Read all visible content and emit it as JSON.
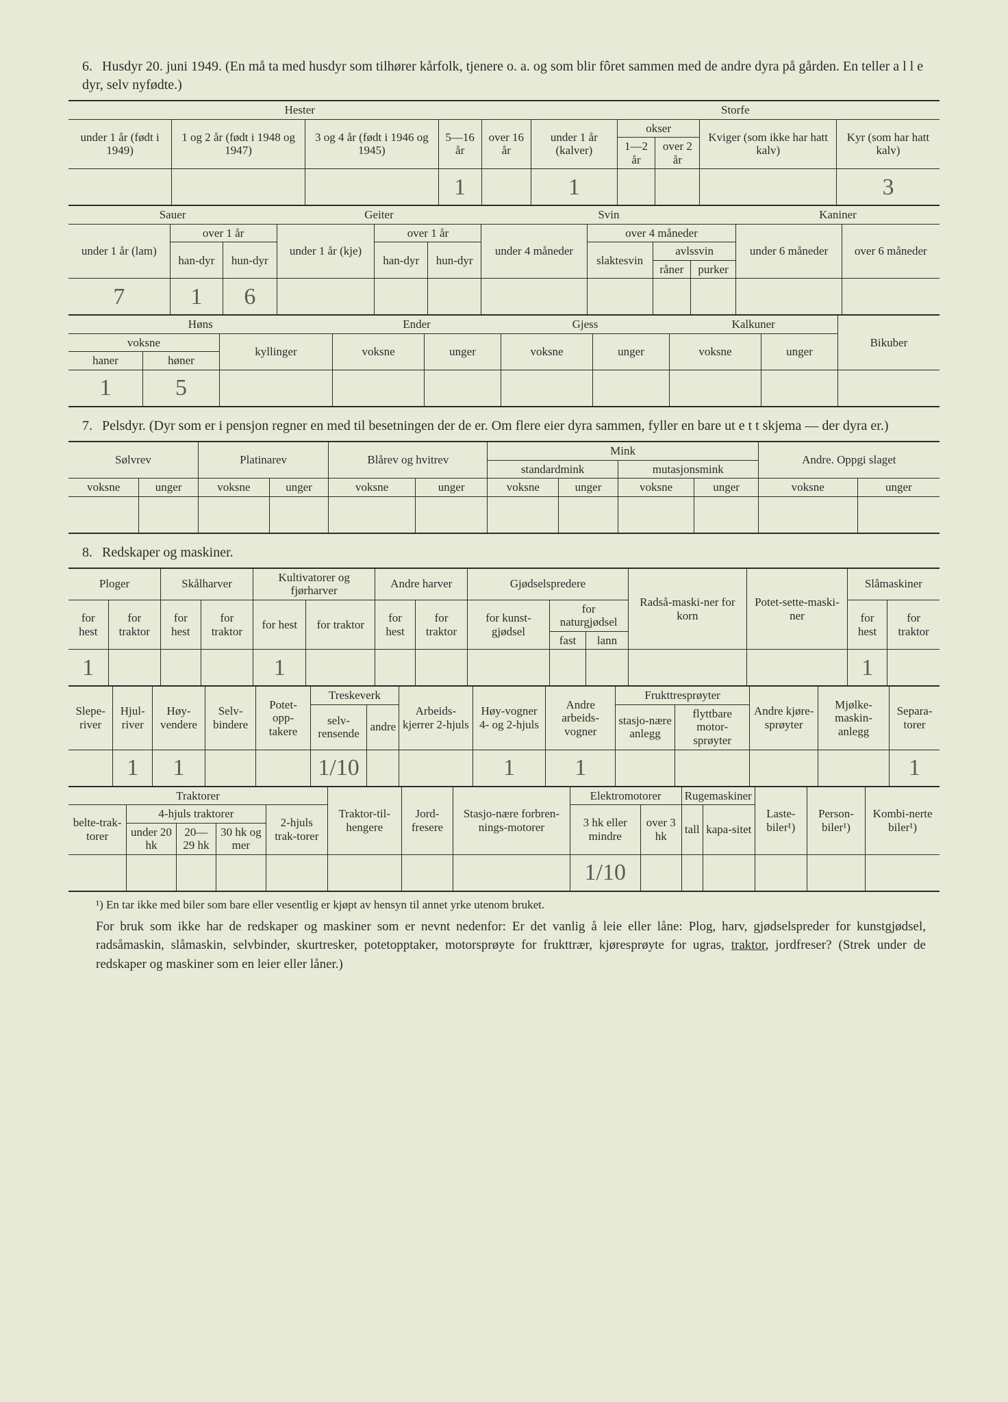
{
  "section6": {
    "title_num": "6.",
    "title": "Husdyr 20. juni 1949. (En må ta med husdyr som tilhører kårfolk, tjenere o. a. og som blir fôret sammen med de andre dyra på gården.  En teller a l l e dyr, selv nyfødte.)",
    "t1": {
      "hester": "Hester",
      "storfe": "Storfe",
      "h_u1": "under 1 år (født i 1949)",
      "h_1_2": "1 og 2 år (født i 1948 og 1947)",
      "h_3_4": "3 og 4 år (født i 1946 og 1945)",
      "h_5_16": "5—16 år",
      "h_o16": "over 16 år",
      "s_u1": "under 1 år (kalver)",
      "s_okser": "okser",
      "s_1_2": "1—2 år",
      "s_o2": "over 2 år",
      "s_kviger": "Kviger (som ikke har hatt kalv)",
      "s_kyr": "Kyr (som har hatt kalv)",
      "vals": {
        "h_5_16": "1",
        "s_u1": "1",
        "s_kyr": "3"
      }
    },
    "t2": {
      "sauer": "Sauer",
      "geiter": "Geiter",
      "svin": "Svin",
      "kaniner": "Kaniner",
      "u1_lam": "under 1 år (lam)",
      "o1": "over 1 år",
      "handyr": "han-dyr",
      "hundyr": "hun-dyr",
      "u1_kje": "under 1 år (kje)",
      "u4": "under 4 måneder",
      "o4": "over 4 måneder",
      "slaktesvin": "slaktesvin",
      "avlssvin": "avlssvin",
      "raner": "råner",
      "purker": "purker",
      "u6": "under 6 måneder",
      "o6": "over 6 måneder",
      "vals": {
        "lam": "7",
        "handyr": "1",
        "hundyr": "6"
      }
    },
    "t3": {
      "hons": "Høns",
      "ender": "Ender",
      "gjess": "Gjess",
      "kalkuner": "Kalkuner",
      "bikuber": "Bikuber",
      "voksne": "voksne",
      "haner": "haner",
      "honer": "høner",
      "kyllinger": "kyllinger",
      "unger": "unger",
      "vals": {
        "haner": "1",
        "honer": "5"
      }
    }
  },
  "section7": {
    "title_num": "7.",
    "title": "Pelsdyr.  (Dyr som er i pensjon regner en med til besetningen der de er.  Om flere eier dyra sammen, fyller en bare ut e t t skjema — der dyra er.)",
    "solvrev": "Sølvrev",
    "platinarev": "Platinarev",
    "blarev": "Blårev og hvitrev",
    "mink": "Mink",
    "standardmink": "standardmink",
    "mutasjonsmink": "mutasjonsmink",
    "andre": "Andre. Oppgi slaget",
    "voksne": "voksne",
    "unger": "unger"
  },
  "section8": {
    "title_num": "8.",
    "title": "Redskaper og maskiner.",
    "t1": {
      "ploger": "Ploger",
      "skalharver": "Skålharver",
      "kultivatorer": "Kultivatorer og fjørharver",
      "andreharver": "Andre harver",
      "gjodselspredere": "Gjødselspredere",
      "radsa": "Radså-maski-ner for korn",
      "potet": "Potet-sette-maski-ner",
      "slamaskiner": "Slåmaskiner",
      "forhest": "for hest",
      "fortraktor": "for traktor",
      "forkunst": "for kunst-gjødsel",
      "fornatur": "for naturgjødsel",
      "fast": "fast",
      "lann": "lann",
      "vals": {
        "plog_hest": "1",
        "kult_hest": "1",
        "sla_hest": "1"
      }
    },
    "t2": {
      "sleperiver": "Slepe-river",
      "hjulriver": "Hjul-river",
      "hoyvendere": "Høy-vendere",
      "selvbindere": "Selv-bindere",
      "potetopptakere": "Potet-opp-takere",
      "treskeverk": "Treskeverk",
      "selvrensende": "selv-rensende",
      "andre": "andre",
      "arbeidskjerrer": "Arbeids-kjerrer 2-hjuls",
      "hoyvogner": "Høy-vogner 4- og 2-hjuls",
      "andrearbeids": "Andre arbeids-vogner",
      "frukttresproyter": "Frukttresprøyter",
      "stasjonere": "stasjo-nære anlegg",
      "flyttbare": "flyttbare motor-sprøyter",
      "andrekjore": "Andre kjøre-sprøyter",
      "mjolke": "Mjølke-maskin-anlegg",
      "separatorer": "Separa-torer",
      "vals": {
        "hjulriver": "1",
        "hoyvendere": "1",
        "treskeverk_selv": "1/10",
        "hoyvogner": "1",
        "andrearbeids": "1",
        "separatorer": "1"
      }
    },
    "t3": {
      "traktorer": "Traktorer",
      "beltetraktorer": "belte-trak-torer",
      "firehjul": "4-hjuls traktorer",
      "u20": "under 20 hk",
      "hk2029": "20—29 hk",
      "hk30": "30 hk og mer",
      "tohjul": "2-hjuls trak-torer",
      "traktortilhengere": "Traktor-til-hengere",
      "jordfresere": "Jord-fresere",
      "stasjonere": "Stasjo-nære forbren-nings-motorer",
      "elektromotorer": "Elektromotorer",
      "hk3mindre": "3 hk eller mindre",
      "over3hk": "over 3 hk",
      "rugemaskiner": "Rugemaskiner",
      "tall": "tall",
      "kapasitet": "kapa-sitet",
      "lastebiler": "Laste-biler¹)",
      "personbiler": "Person-biler¹)",
      "kombinerte": "Kombi-nerte biler¹)",
      "vals": {
        "hk3mindre": "1/10"
      }
    },
    "footnote": "¹) En tar ikke med biler som bare eller vesentlig er kjøpt av hensyn til annet yrke utenom bruket.",
    "bottom": "For bruk som ikke har de redskaper og maskiner som er nevnt nedenfor: Er det vanlig å leie eller låne: Plog, harv, gjødselspreder for kunstgjødsel, radsåmaskin, slåmaskin, selvbinder, skurtresker, potetopptaker, motorsprøyte for frukttrær, kjøresprøyte for ugras, ",
    "bottom_underline": "traktor",
    "bottom_end": ", jordfreser? (Strek under de redskaper og maskiner som en leier eller låner.)"
  }
}
